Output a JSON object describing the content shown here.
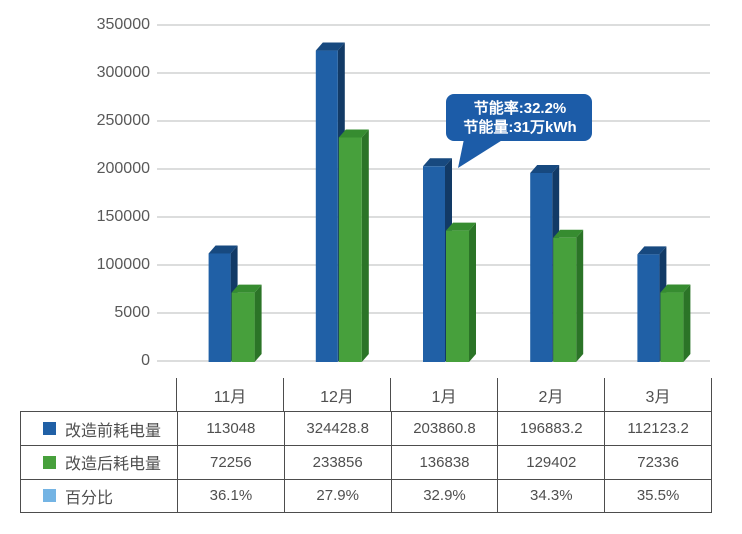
{
  "chart_data": {
    "type": "bar",
    "title": "",
    "categories": [
      "11月",
      "12月",
      "1月",
      "2月",
      "3月"
    ],
    "y_ticks": [
      "350000",
      "300000",
      "250000",
      "200000",
      "150000",
      "100000",
      "5000",
      "0"
    ],
    "ylim": [
      0,
      350000
    ],
    "grid": true,
    "legend_position": "table-left-column",
    "series": [
      {
        "name": "改造前耗电量",
        "color": "#2060a6",
        "side_color": "#123a66",
        "top_color": "#17497f",
        "values": [
          113048,
          324428.8,
          203860.8,
          196883.2,
          112123.2
        ]
      },
      {
        "name": "改造后耗电量",
        "color": "#47a03c",
        "side_color": "#2b7427",
        "top_color": "#368c30",
        "values": [
          72256,
          233856,
          136838,
          129402,
          72336
        ]
      },
      {
        "name": "百分比",
        "color": "#74b4e4",
        "values": [
          "36.1%",
          "27.9%",
          "32.9%",
          "34.3%",
          "35.5%"
        ]
      }
    ],
    "callout": {
      "line1": "节能率:32.2%",
      "line2": "节能量:31万kWh",
      "color": "#1c5ca8",
      "attached_to": "1月"
    }
  }
}
